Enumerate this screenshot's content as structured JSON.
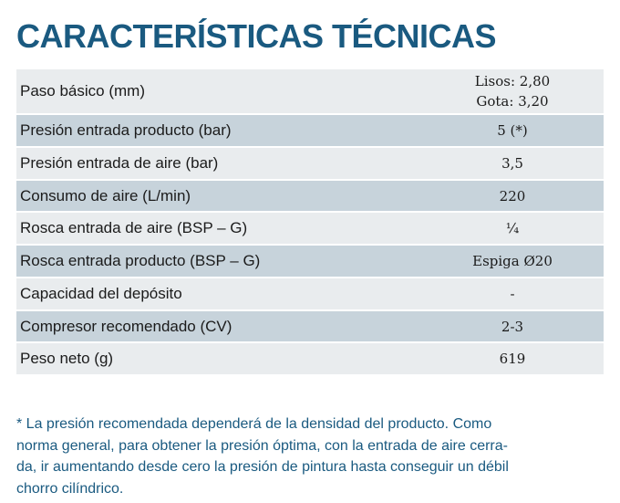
{
  "title": "CARACTERÍSTICAS TÉCNICAS",
  "rows": [
    {
      "label": "Paso básico (mm)",
      "values": [
        "Lisos: 2,80",
        "Gota: 3,20"
      ]
    },
    {
      "label": "Presión entrada producto (bar)",
      "value": "5 (*)"
    },
    {
      "label": "Presión entrada de aire (bar)",
      "value": "3,5"
    },
    {
      "label": "Consumo de aire (L/min)",
      "value": "220"
    },
    {
      "label": "Rosca entrada de aire (BSP – G)",
      "value": "¼"
    },
    {
      "label": "Rosca entrada producto (BSP – G)",
      "value": "Espiga Ø20"
    },
    {
      "label": "Capacidad del depósito",
      "value": "-"
    },
    {
      "label": "Compresor recomendado (CV)",
      "value": "2-3"
    },
    {
      "label": "Peso neto (g)",
      "value": "619"
    }
  ],
  "note": {
    "lines": [
      "* La presión recomendada dependerá de la densidad del producto. Como",
      "norma general, para obtener la presión óptima, con la entrada de aire cerra-",
      "da, ir aumentando desde cero la presión de pintura hasta conseguir un débil",
      "chorro cilíndrico."
    ]
  },
  "colors": {
    "title": "#1a5a80",
    "row_light": "#e9ecee",
    "row_dark": "#c7d3db",
    "note": "#1a5a80"
  }
}
